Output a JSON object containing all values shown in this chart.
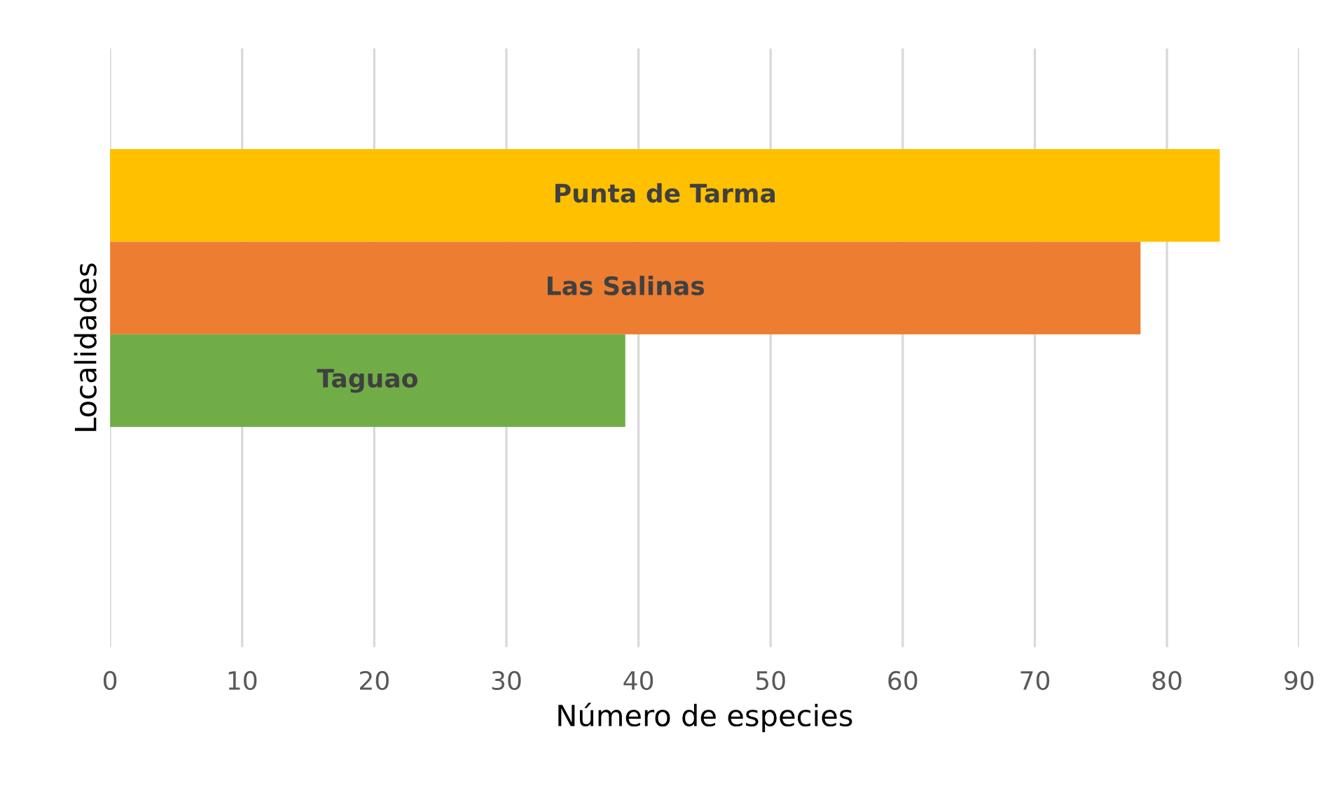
{
  "chart_data": {
    "type": "bar",
    "orientation": "horizontal",
    "xlabel": "Número de especies",
    "ylabel": "Localidades",
    "categories": [
      null
    ],
    "series": [
      {
        "name": "Punta de Tarma",
        "color": "#ffc000",
        "values": [
          84
        ]
      },
      {
        "name": "Las Salinas",
        "color": "#ed7d31",
        "values": [
          78
        ]
      },
      {
        "name": "Taguao",
        "color": "#70ad47",
        "values": [
          39
        ]
      }
    ],
    "xlim": [
      0,
      90
    ],
    "xticks": [
      0,
      10,
      20,
      30,
      40,
      50,
      60,
      70,
      80,
      90
    ],
    "grid": "x",
    "tick_labels": "x",
    "legend": false
  }
}
